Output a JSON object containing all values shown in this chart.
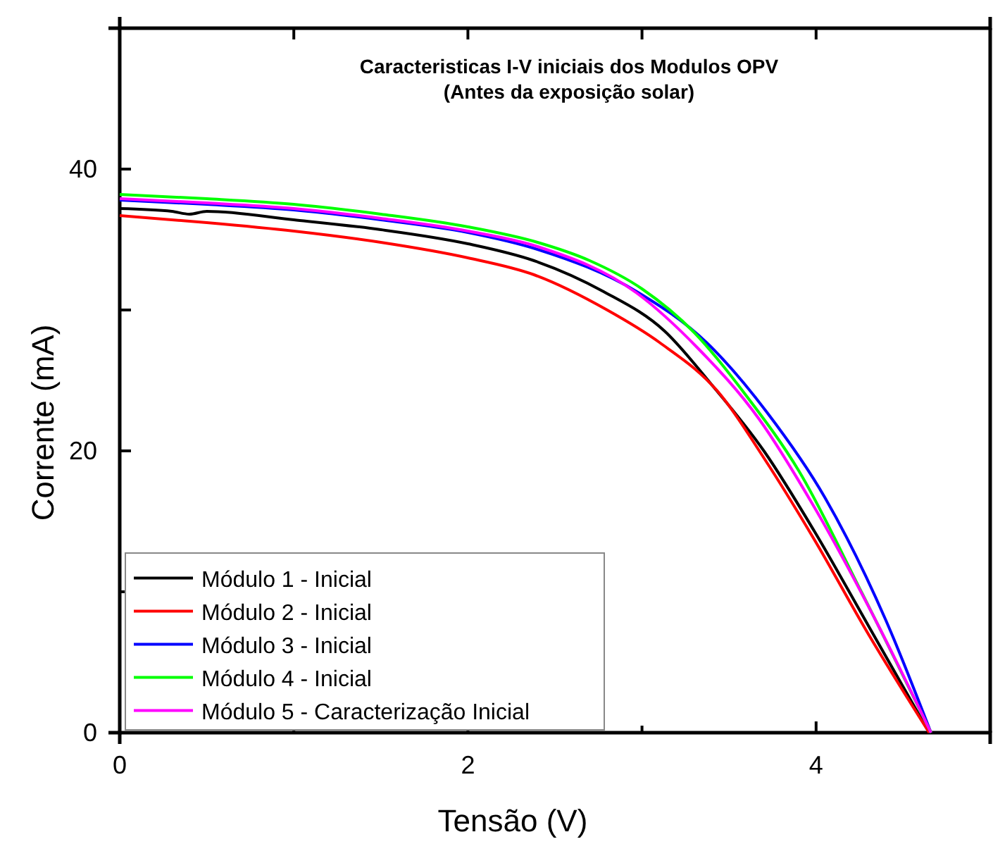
{
  "chart_data": {
    "type": "line",
    "title": "Caracteristicas I-V iniciais dos Modulos OPV\n(Antes da exposição solar)",
    "xlabel": "Tensão (V)",
    "ylabel": "Corrente (mA)",
    "xlim": [
      0,
      5
    ],
    "xticks": [
      0,
      {
        "value": 1,
        "label": null
      },
      2,
      {
        "value": 3,
        "label": null
      },
      4,
      {
        "value": 5,
        "label": null
      }
    ],
    "ylim": [
      0,
      50
    ],
    "yticks": [
      0,
      {
        "value": 10,
        "label": null
      },
      20,
      {
        "value": 30,
        "label": null
      },
      40,
      {
        "value": 50,
        "label": null
      }
    ],
    "grid": false,
    "legend": "bottom left",
    "marker": "none",
    "line_style": "solid",
    "series": [
      {
        "name": "Módulo 1 - Inicial",
        "color": "#000000",
        "x": [
          0,
          0.3,
          0.4,
          0.5,
          1,
          1.5,
          2,
          2.38,
          2.78,
          3.13,
          3.4,
          3.7,
          3.99,
          4.3,
          4.65
        ],
        "values": [
          37.2,
          37.0,
          36.8,
          37.0,
          36.4,
          35.7,
          34.7,
          33.5,
          31.3,
          28.5,
          24.7,
          20,
          14.3,
          7.6,
          0
        ]
      },
      {
        "name": "Módulo 2 - Inicial",
        "color": "#ff0000",
        "x": [
          0,
          0.5,
          1,
          1.5,
          2,
          2.38,
          2.8,
          3.1,
          3.45,
          3.7,
          3.99,
          4.3,
          4.65
        ],
        "values": [
          36.7,
          36.2,
          35.6,
          34.8,
          33.7,
          32.5,
          30,
          27.7,
          24,
          19.5,
          13.7,
          7,
          0
        ]
      },
      {
        "name": "Módulo 3 - Inicial",
        "color": "#0000ff",
        "x": [
          0,
          0.5,
          1,
          1.5,
          2,
          2.4,
          2.97,
          3.37,
          3.72,
          4.05,
          4.4,
          4.66
        ],
        "values": [
          37.8,
          37.5,
          37.1,
          36.4,
          35.5,
          34.3,
          31.3,
          27.7,
          22.7,
          16.7,
          8,
          0
        ]
      },
      {
        "name": "Módulo 4 - Inicial",
        "color": "#00ff00",
        "x": [
          0,
          0.5,
          1,
          1.5,
          2,
          2.4,
          2.7,
          3.0,
          3.3,
          3.6,
          3.9,
          4.26,
          4.66
        ],
        "values": [
          38.2,
          37.9,
          37.5,
          36.8,
          35.9,
          34.8,
          33.5,
          31.5,
          28.4,
          23.9,
          18.6,
          10,
          0
        ]
      },
      {
        "name": "Módulo 5 - Caracterização Inicial",
        "color": "#ff00ff",
        "x": [
          0,
          0.5,
          1,
          1.5,
          2,
          2.4,
          2.97,
          3.32,
          3.67,
          3.99,
          4.37,
          4.66
        ],
        "values": [
          37.9,
          37.6,
          37.2,
          36.5,
          35.6,
          34.5,
          31.2,
          27.3,
          22.3,
          16,
          7.3,
          0
        ]
      }
    ]
  }
}
